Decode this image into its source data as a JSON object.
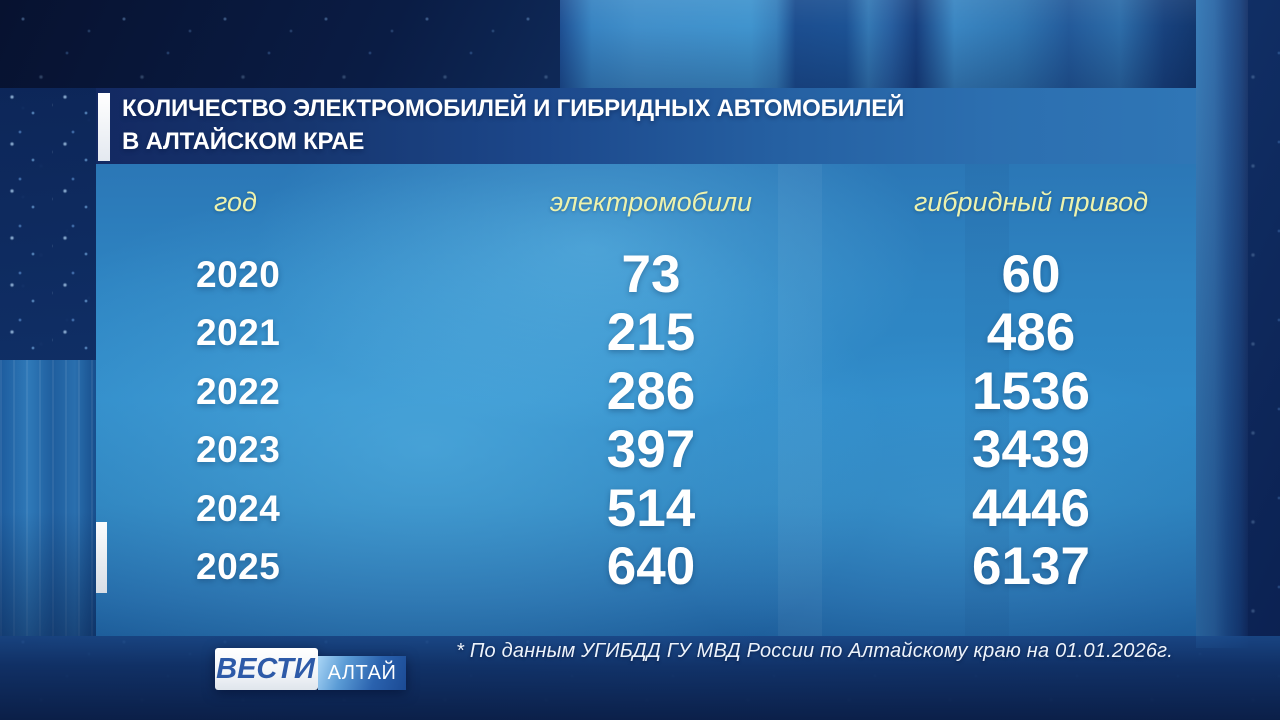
{
  "title": {
    "line1": "КОЛИЧЕСТВО ЭЛЕКТРОМОБИЛЕЙ И ГИБРИДНЫХ АВТОМОБИЛЕЙ",
    "line2": "В АЛТАЙСКОМ КРАЕ"
  },
  "chart_data": {
    "type": "table",
    "title": "Количество электромобилей и гибридных автомобилей в Алтайском крае",
    "columns": [
      "год",
      "электромобили",
      "гибридный привод"
    ],
    "rows": [
      {
        "year": "2020",
        "ev": "73",
        "hybrid": "60"
      },
      {
        "year": "2021",
        "ev": "215",
        "hybrid": "486"
      },
      {
        "year": "2022",
        "ev": "286",
        "hybrid": "1536"
      },
      {
        "year": "2023",
        "ev": "397",
        "hybrid": "3439"
      },
      {
        "year": "2024",
        "ev": "514",
        "hybrid": "4446"
      },
      {
        "year": "2025",
        "ev": "640",
        "hybrid": "6137"
      }
    ],
    "source_note": "* По данным УГИБДД ГУ МВД России по Алтайскому краю на 01.01.2026г."
  },
  "logo": {
    "primary": "ВЕСТИ",
    "secondary": "АЛТАЙ"
  },
  "colors": {
    "panel": "#2e8ac8",
    "header_text": "#edf2ad",
    "table_text": "#ffffff",
    "accent_bar": "#ffffff",
    "logo_text": "#2d5aa8",
    "background": "#0c2150"
  }
}
